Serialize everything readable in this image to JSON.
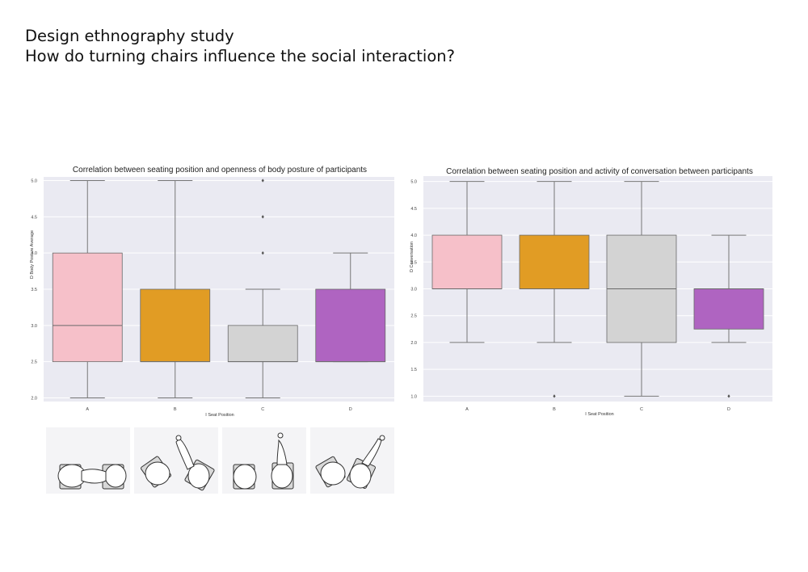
{
  "page": {
    "title_line1": "Design ethnography study",
    "title_line2": "How do turning chairs influence the social interaction?"
  },
  "chart_data": [
    {
      "type": "box",
      "title": "Correlation between seating position and openness of body posture of participants",
      "xlabel": "I Seat Position",
      "ylabel": "D Body Posture Average",
      "categories": [
        "A",
        "B",
        "C",
        "D"
      ],
      "ylim": [
        1.95,
        5.05
      ],
      "yticks": [
        "2.0",
        "2.5",
        "3.0",
        "3.5",
        "4.0",
        "4.5",
        "5.0"
      ],
      "grid": true,
      "boxes": [
        {
          "category": "A",
          "whisker_low": 2.0,
          "q1": 2.5,
          "median": 3.0,
          "q3": 4.0,
          "whisker_high": 5.0,
          "outliers": [],
          "color": "#f6c0c9"
        },
        {
          "category": "B",
          "whisker_low": 2.0,
          "q1": 2.5,
          "median": 2.5,
          "q3": 3.5,
          "whisker_high": 5.0,
          "outliers": [],
          "color": "#e19c24"
        },
        {
          "category": "C",
          "whisker_low": 2.0,
          "q1": 2.5,
          "median": 2.5,
          "q3": 3.0,
          "whisker_high": 3.5,
          "outliers": [
            4.0,
            4.5,
            5.0
          ],
          "color": "#d3d3d3"
        },
        {
          "category": "D",
          "whisker_low": 2.5,
          "q1": 2.5,
          "median": 2.5,
          "q3": 3.5,
          "whisker_high": 4.0,
          "outliers": [],
          "color": "#af64c1"
        }
      ]
    },
    {
      "type": "box",
      "title": "Correlation between seating position and activity of conversation between participants",
      "xlabel": "I Seat Position",
      "ylabel": "D Conversation",
      "categories": [
        "A",
        "B",
        "C",
        "D"
      ],
      "ylim": [
        0.9,
        5.1
      ],
      "yticks": [
        "1.0",
        "1.5",
        "2.0",
        "2.5",
        "3.0",
        "3.5",
        "4.0",
        "4.5",
        "5.0"
      ],
      "grid": true,
      "boxes": [
        {
          "category": "A",
          "whisker_low": 2.0,
          "q1": 3.0,
          "median": 3.0,
          "q3": 4.0,
          "whisker_high": 5.0,
          "outliers": [],
          "color": "#f6c0c9"
        },
        {
          "category": "B",
          "whisker_low": 2.0,
          "q1": 3.0,
          "median": 3.0,
          "q3": 4.0,
          "whisker_high": 5.0,
          "outliers": [
            1.0
          ],
          "color": "#e19c24"
        },
        {
          "category": "C",
          "whisker_low": 1.0,
          "q1": 2.0,
          "median": 3.0,
          "q3": 4.0,
          "whisker_high": 5.0,
          "outliers": [],
          "color": "#d3d3d3"
        },
        {
          "category": "D",
          "whisker_low": 2.0,
          "q1": 2.25,
          "median": 3.0,
          "q3": 3.0,
          "whisker_high": 4.0,
          "outliers": [
            1.0
          ],
          "color": "#af64c1"
        }
      ]
    }
  ],
  "thumbnails": [
    {
      "label": "A",
      "icon": "seating-face-to-face-icon"
    },
    {
      "label": "B",
      "icon": "seating-angled-icon"
    },
    {
      "label": "C",
      "icon": "seating-side-by-side-icon"
    },
    {
      "label": "D",
      "icon": "seating-turned-icon"
    }
  ]
}
